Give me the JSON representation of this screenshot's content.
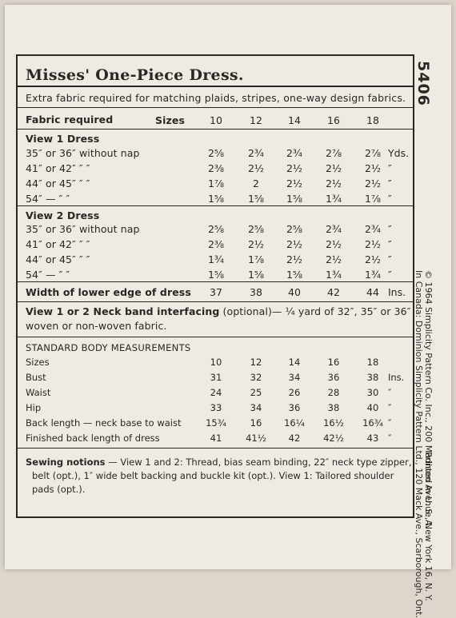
{
  "title": "Misses' One-Piece Dress.",
  "pattern_number": "5406",
  "subtitle": "Extra fabric required for matching plaids, stripes, one-way design fabrics.",
  "fabric_header": {
    "label": "Fabric required",
    "sizes_label": "Sizes",
    "sizes": [
      "10",
      "12",
      "14",
      "16",
      "18"
    ]
  },
  "view1": {
    "heading": "View 1  Dress",
    "rows": [
      {
        "label": "35″ or 36″ without nap",
        "values": [
          "2⅝",
          "2¾",
          "2¾",
          "2⅞",
          "2⅞"
        ],
        "unit": "Yds."
      },
      {
        "label": "41″ or 42″     ″     ″",
        "values": [
          "2⅜",
          "2½",
          "2½",
          "2½",
          "2½"
        ],
        "unit": "″"
      },
      {
        "label": "44″ or 45″     ″     ″",
        "values": [
          "1⅞",
          "2",
          "2½",
          "2½",
          "2½"
        ],
        "unit": "″"
      },
      {
        "label": "54″     —     ″     ″",
        "values": [
          "1⅝",
          "1⅝",
          "1⅝",
          "1¾",
          "1⅞"
        ],
        "unit": "″"
      }
    ]
  },
  "view2": {
    "heading": "View 2  Dress",
    "rows": [
      {
        "label": "35″ or 36″ without nap",
        "values": [
          "2⅝",
          "2⅝",
          "2⅝",
          "2¾",
          "2¾"
        ],
        "unit": "″"
      },
      {
        "label": "41″ or 42″     ″     ″",
        "values": [
          "2⅜",
          "2½",
          "2½",
          "2½",
          "2½"
        ],
        "unit": "″"
      },
      {
        "label": "44″ or 45″     ″     ″",
        "values": [
          "1¾",
          "1⅞",
          "2½",
          "2½",
          "2½"
        ],
        "unit": "″"
      },
      {
        "label": "54″     —     ″     ″",
        "values": [
          "1⅝",
          "1⅝",
          "1⅝",
          "1¾",
          "1¾"
        ],
        "unit": "″"
      }
    ]
  },
  "width_row": {
    "label": "Width of lower edge of dress",
    "values": [
      "37",
      "38",
      "40",
      "42",
      "44"
    ],
    "unit": "Ins."
  },
  "interfacing": {
    "line1_bold": "View 1 or 2  Neck band interfacing",
    "line1_rest": " (optional)— ¼ yard of 32″, 35″ or 36″",
    "line2": "woven or non-woven fabric."
  },
  "measurements": {
    "heading": "STANDARD BODY MEASUREMENTS",
    "rows": [
      {
        "label": "Sizes",
        "values": [
          "10",
          "12",
          "14",
          "16",
          "18"
        ],
        "unit": ""
      },
      {
        "label": "Bust",
        "values": [
          "31",
          "32",
          "34",
          "36",
          "38"
        ],
        "unit": "Ins."
      },
      {
        "label": "Waist",
        "values": [
          "24",
          "25",
          "26",
          "28",
          "30"
        ],
        "unit": "″"
      },
      {
        "label": "Hip",
        "values": [
          "33",
          "34",
          "36",
          "38",
          "40"
        ],
        "unit": "″"
      },
      {
        "label": "Back length — neck base to waist",
        "values": [
          "15¾",
          "16",
          "16¼",
          "16½",
          "16¾"
        ],
        "unit": "″"
      },
      {
        "label": "Finished back length of dress",
        "values": [
          "41",
          "41½",
          "42",
          "42½",
          "43"
        ],
        "unit": "″"
      }
    ]
  },
  "notions": {
    "line1_bold": "Sewing notions",
    "line1_rest": " — View 1 and 2: Thread, bias seam binding, 22″ neck type zipper,",
    "line2": "belt (opt.), 1″ wide belt backing and buckle kit (opt.). View 1: Tailored shoulder",
    "line3": "pads (opt.)."
  },
  "side_copyright": [
    "© 1964 Simplicity Pattern Co. Inc., 200 Madison Avenue, New York 16, N. Y.",
    "In Canada: Dominion Simplicity Pattern Ltd., 120 Mack Ave., Scarborough, Ont."
  ],
  "side_printed": "Printed in U. S. A."
}
